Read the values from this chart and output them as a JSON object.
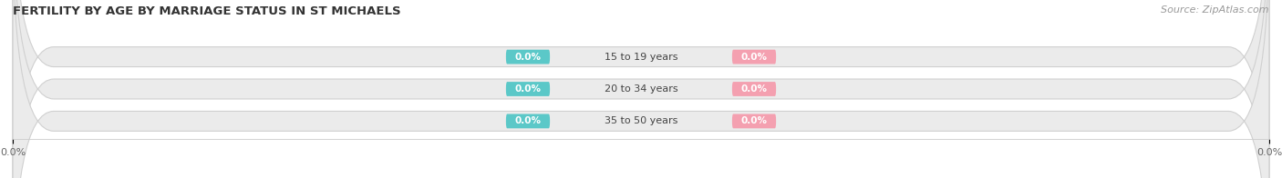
{
  "title": "FERTILITY BY AGE BY MARRIAGE STATUS IN ST MICHAELS",
  "source": "Source: ZipAtlas.com",
  "categories": [
    "15 to 19 years",
    "20 to 34 years",
    "35 to 50 years"
  ],
  "married_values": [
    0.0,
    0.0,
    0.0
  ],
  "unmarried_values": [
    0.0,
    0.0,
    0.0
  ],
  "married_color": "#5bc8c8",
  "unmarried_color": "#f4a0b0",
  "bar_bg_color": "#ebebeb",
  "bar_border_color": "#d0d0d0",
  "xlim": [
    -100,
    100
  ],
  "title_fontsize": 9.5,
  "source_fontsize": 8,
  "value_fontsize": 7.5,
  "cat_fontsize": 8,
  "tick_fontsize": 8,
  "legend_fontsize": 8.5,
  "figsize": [
    14.06,
    1.96
  ],
  "dpi": 100
}
